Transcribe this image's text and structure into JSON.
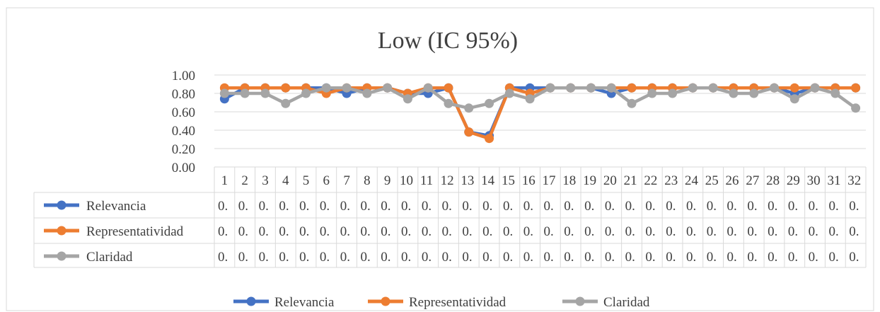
{
  "chart_data": {
    "type": "line",
    "title": "Low (IC 95%)",
    "categories": [
      "1",
      "2",
      "3",
      "4",
      "5",
      "6",
      "7",
      "8",
      "9",
      "10",
      "11",
      "12",
      "13",
      "14",
      "15",
      "16",
      "17",
      "18",
      "19",
      "20",
      "21",
      "22",
      "23",
      "24",
      "25",
      "26",
      "27",
      "28",
      "29",
      "30",
      "31",
      "32"
    ],
    "category_cells": [
      "1",
      "2",
      "3",
      "4",
      "5",
      "6",
      "7",
      "8",
      "9",
      "10",
      "11",
      "12",
      "13",
      "14",
      "15",
      "16",
      "17",
      "18",
      "19",
      "20",
      "21",
      "22",
      "23",
      "24",
      "25",
      "26",
      "27",
      "28",
      "29",
      "30",
      "31",
      "32"
    ],
    "ylim": [
      0,
      1
    ],
    "yticks": [
      "0.00",
      "0.20",
      "0.40",
      "0.60",
      "0.80",
      "1.00"
    ],
    "ytick_values": [
      0,
      0.2,
      0.4,
      0.6,
      0.8,
      1.0
    ],
    "grid": true,
    "legend_position": "bottom",
    "table_cell_text": "0.",
    "series": [
      {
        "name": "Relevancia",
        "color": "#4472C4",
        "values": [
          0.74,
          0.86,
          0.86,
          0.86,
          0.86,
          0.86,
          0.8,
          0.86,
          0.86,
          0.8,
          0.8,
          0.86,
          0.38,
          0.34,
          0.86,
          0.86,
          0.86,
          0.86,
          0.86,
          0.8,
          0.86,
          0.86,
          0.86,
          0.86,
          0.86,
          0.86,
          0.86,
          0.86,
          0.8,
          0.86,
          0.86,
          0.86
        ]
      },
      {
        "name": "Representatividad",
        "color": "#ED7D31",
        "values": [
          0.86,
          0.86,
          0.86,
          0.86,
          0.86,
          0.8,
          0.86,
          0.86,
          0.86,
          0.8,
          0.86,
          0.86,
          0.38,
          0.31,
          0.86,
          0.8,
          0.86,
          0.86,
          0.86,
          0.86,
          0.86,
          0.86,
          0.86,
          0.86,
          0.86,
          0.86,
          0.86,
          0.86,
          0.86,
          0.86,
          0.86,
          0.86
        ]
      },
      {
        "name": "Claridad",
        "color": "#A5A5A5",
        "values": [
          0.8,
          0.8,
          0.8,
          0.69,
          0.8,
          0.86,
          0.86,
          0.8,
          0.86,
          0.74,
          0.86,
          0.69,
          0.64,
          0.69,
          0.8,
          0.74,
          0.86,
          0.86,
          0.86,
          0.86,
          0.69,
          0.8,
          0.8,
          0.86,
          0.86,
          0.8,
          0.8,
          0.86,
          0.74,
          0.86,
          0.8,
          0.64
        ]
      }
    ]
  }
}
